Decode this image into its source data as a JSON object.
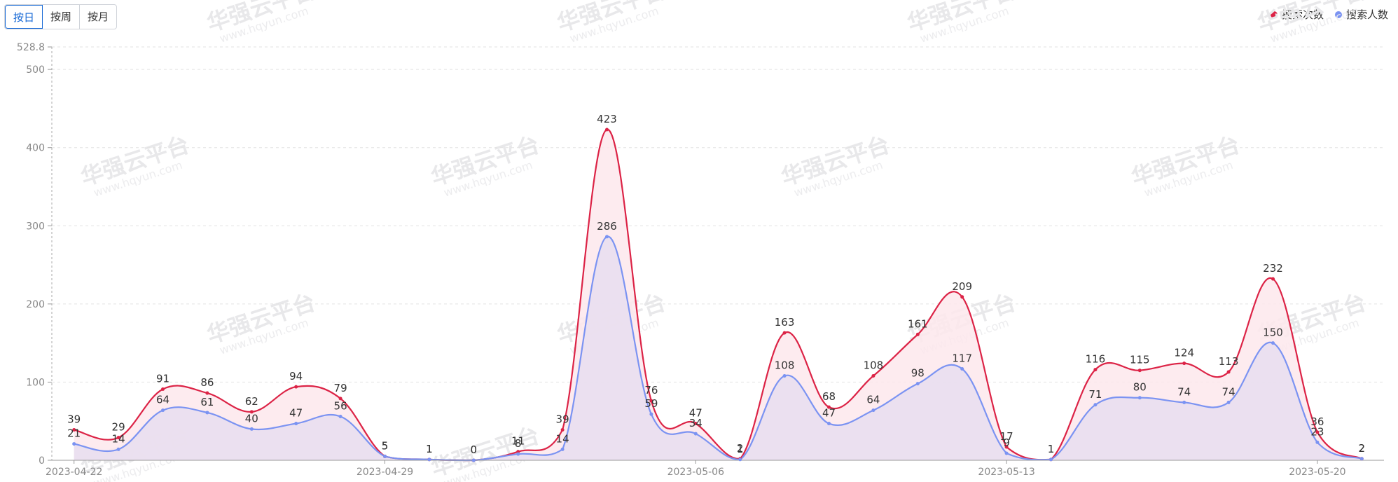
{
  "tabs": [
    {
      "label": "按日",
      "active": true
    },
    {
      "label": "按周",
      "active": false
    },
    {
      "label": "按月",
      "active": false
    }
  ],
  "legend": [
    {
      "name": "搜索次数",
      "color": "#dc2346"
    },
    {
      "name": "搜索人数",
      "color": "#7b93f2"
    }
  ],
  "watermark": {
    "text": "华强云平台",
    "url": "www.hqyun.com"
  },
  "chart_data": {
    "type": "area",
    "smooth": true,
    "ymax_label": "528.8",
    "ylim": [
      0,
      528.8
    ],
    "yticks": [
      0,
      100,
      200,
      300,
      400,
      500
    ],
    "grid": "horizontal-dashed",
    "legend_position": "top-right",
    "x": [
      "2023-04-22",
      "2023-04-23",
      "2023-04-24",
      "2023-04-25",
      "2023-04-26",
      "2023-04-27",
      "2023-04-28",
      "2023-04-29",
      "2023-04-30",
      "2023-05-01",
      "2023-05-02",
      "2023-05-03",
      "2023-05-04",
      "2023-05-05",
      "2023-05-06",
      "2023-05-07",
      "2023-05-08",
      "2023-05-09",
      "2023-05-10",
      "2023-05-11",
      "2023-05-12",
      "2023-05-13",
      "2023-05-14",
      "2023-05-15",
      "2023-05-16",
      "2023-05-17",
      "2023-05-18",
      "2023-05-19",
      "2023-05-20",
      "2023-05-21"
    ],
    "x_tick_labels": [
      "2023-04-22",
      "2023-04-29",
      "2023-05-06",
      "2023-05-13",
      "2023-05-20"
    ],
    "series": [
      {
        "name": "搜索次数",
        "color": "#dc2346",
        "fill": "#fde7ec",
        "values": [
          39,
          29,
          91,
          86,
          62,
          94,
          79,
          5,
          1,
          0,
          11,
          39,
          423,
          76,
          47,
          2,
          163,
          68,
          108,
          161,
          209,
          17,
          1,
          116,
          115,
          124,
          113,
          232,
          36,
          2
        ]
      },
      {
        "name": "搜索人数",
        "color": "#7b93f2",
        "fill": "#e8def0",
        "values": [
          21,
          14,
          64,
          61,
          40,
          47,
          56,
          5,
          1,
          0,
          8,
          14,
          286,
          59,
          34,
          1,
          108,
          47,
          64,
          98,
          117,
          9,
          1,
          71,
          80,
          74,
          74,
          150,
          23,
          2
        ]
      }
    ]
  }
}
